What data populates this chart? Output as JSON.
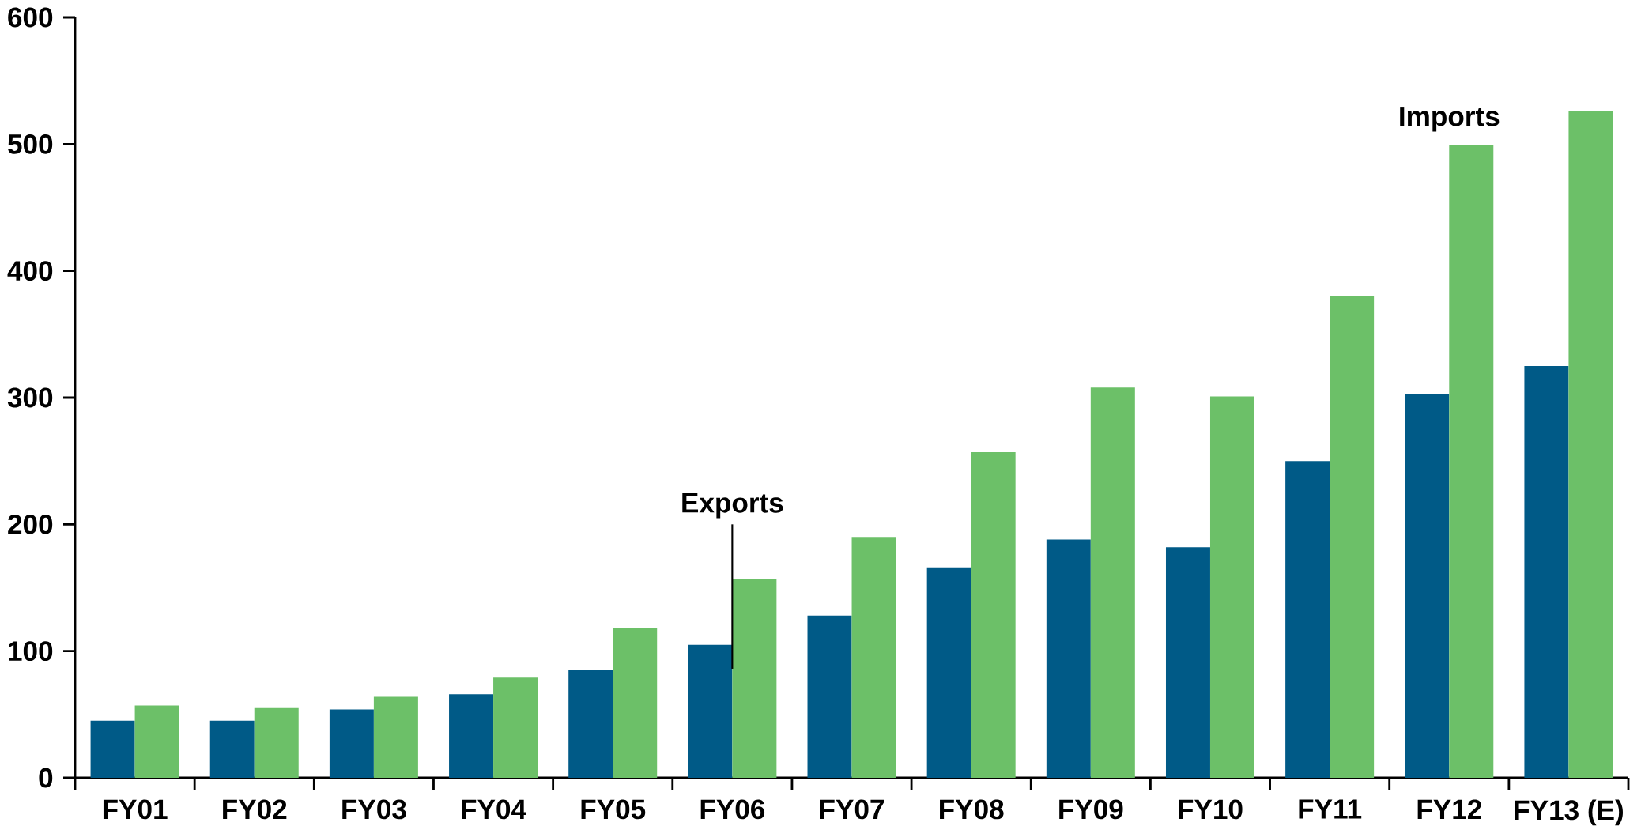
{
  "chart_data": {
    "type": "bar",
    "categories": [
      "FY01",
      "FY02",
      "FY03",
      "FY04",
      "FY05",
      "FY06",
      "FY07",
      "FY08",
      "FY09",
      "FY10",
      "FY11",
      "FY12",
      "FY13 (E)"
    ],
    "series": [
      {
        "name": "Exports",
        "color": "#005a87",
        "values": [
          45,
          45,
          54,
          66,
          85,
          105,
          128,
          166,
          188,
          182,
          250,
          303,
          325
        ]
      },
      {
        "name": "Imports",
        "color": "#6cc068",
        "values": [
          57,
          55,
          64,
          79,
          118,
          157,
          190,
          257,
          308,
          301,
          380,
          499,
          526
        ]
      }
    ],
    "ylim": [
      0,
      600
    ],
    "yticks": [
      0,
      100,
      200,
      300,
      400,
      500,
      600
    ]
  }
}
